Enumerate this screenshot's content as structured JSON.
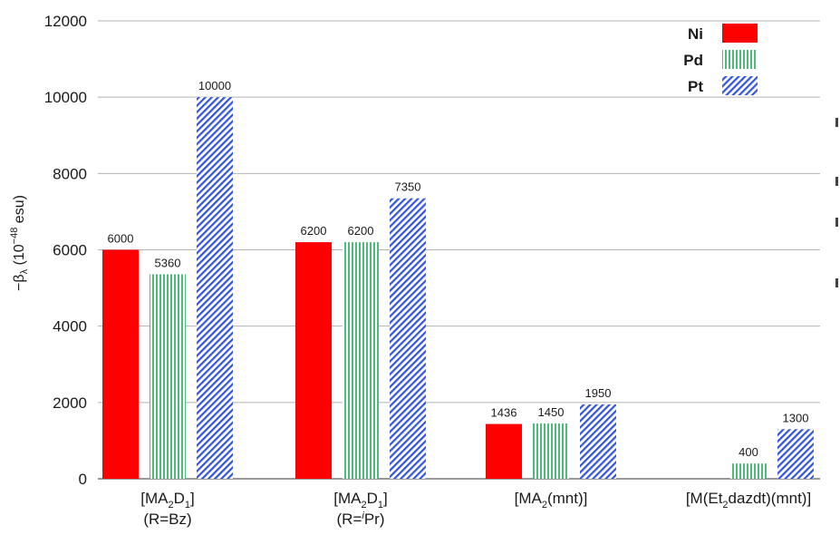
{
  "chart_data": {
    "type": "bar",
    "categories": [
      {
        "main": "[MA",
        "sub1": "2",
        "mid": "D",
        "sub2": "1",
        "end": "]",
        "line2": "(R=Bz)",
        "sup": "",
        "line2_end": ""
      },
      {
        "main": "[MA",
        "sub1": "2",
        "mid": "D",
        "sub2": "1",
        "end": "]",
        "line2": "(R=",
        "sup": "i",
        "line2_end": "Pr)"
      },
      {
        "main": "[MA",
        "sub1": "2",
        "mid": "(mnt)]",
        "sub2": "",
        "end": "",
        "line2": "",
        "sup": "",
        "line2_end": ""
      },
      {
        "main": "[M(Et",
        "sub1": "2",
        "mid": "dazdt)(mnt)]",
        "sub2": "",
        "end": "",
        "line2": "",
        "sup": "",
        "line2_end": ""
      }
    ],
    "series": [
      {
        "name": "Ni",
        "color": "#ff0000",
        "pattern": "solid",
        "values": [
          6000,
          6200,
          1436,
          null
        ],
        "labels": [
          "6000",
          "6200",
          "1436",
          ""
        ]
      },
      {
        "name": "Pd",
        "color": "#4dbb7a",
        "pattern": "vertical-stripes",
        "values": [
          5360,
          6200,
          1450,
          400
        ],
        "labels": [
          "5360",
          "6200",
          "1450",
          "400"
        ]
      },
      {
        "name": "Pt",
        "color": "#3355dd",
        "pattern": "diagonal-hatch",
        "values": [
          10000,
          7350,
          1950,
          1300
        ],
        "labels": [
          "10000",
          "7350",
          "1950",
          "1300"
        ]
      }
    ],
    "ylim": [
      0,
      12000
    ],
    "yticks": [
      "0",
      "2000",
      "4000",
      "6000",
      "8000",
      "10000",
      "12000"
    ],
    "ylabel": {
      "prefix": "−β",
      "sub": "λ",
      "mid": " (10",
      "sup": "−48",
      "suffix": " esu)"
    },
    "grid": true,
    "legend_position": "top-right"
  }
}
